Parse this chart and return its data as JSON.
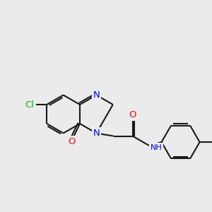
{
  "bg_color": "#ebebeb",
  "bond_color": "#000000",
  "bond_width": 1.5,
  "atom_colors": {
    "N": "#0000ff",
    "O": "#ff0000",
    "Cl": "#00bb00",
    "C": "#000000",
    "H": "#808080"
  },
  "font_size": 8.5,
  "figsize": [
    3.0,
    3.0
  ],
  "dpi": 100
}
